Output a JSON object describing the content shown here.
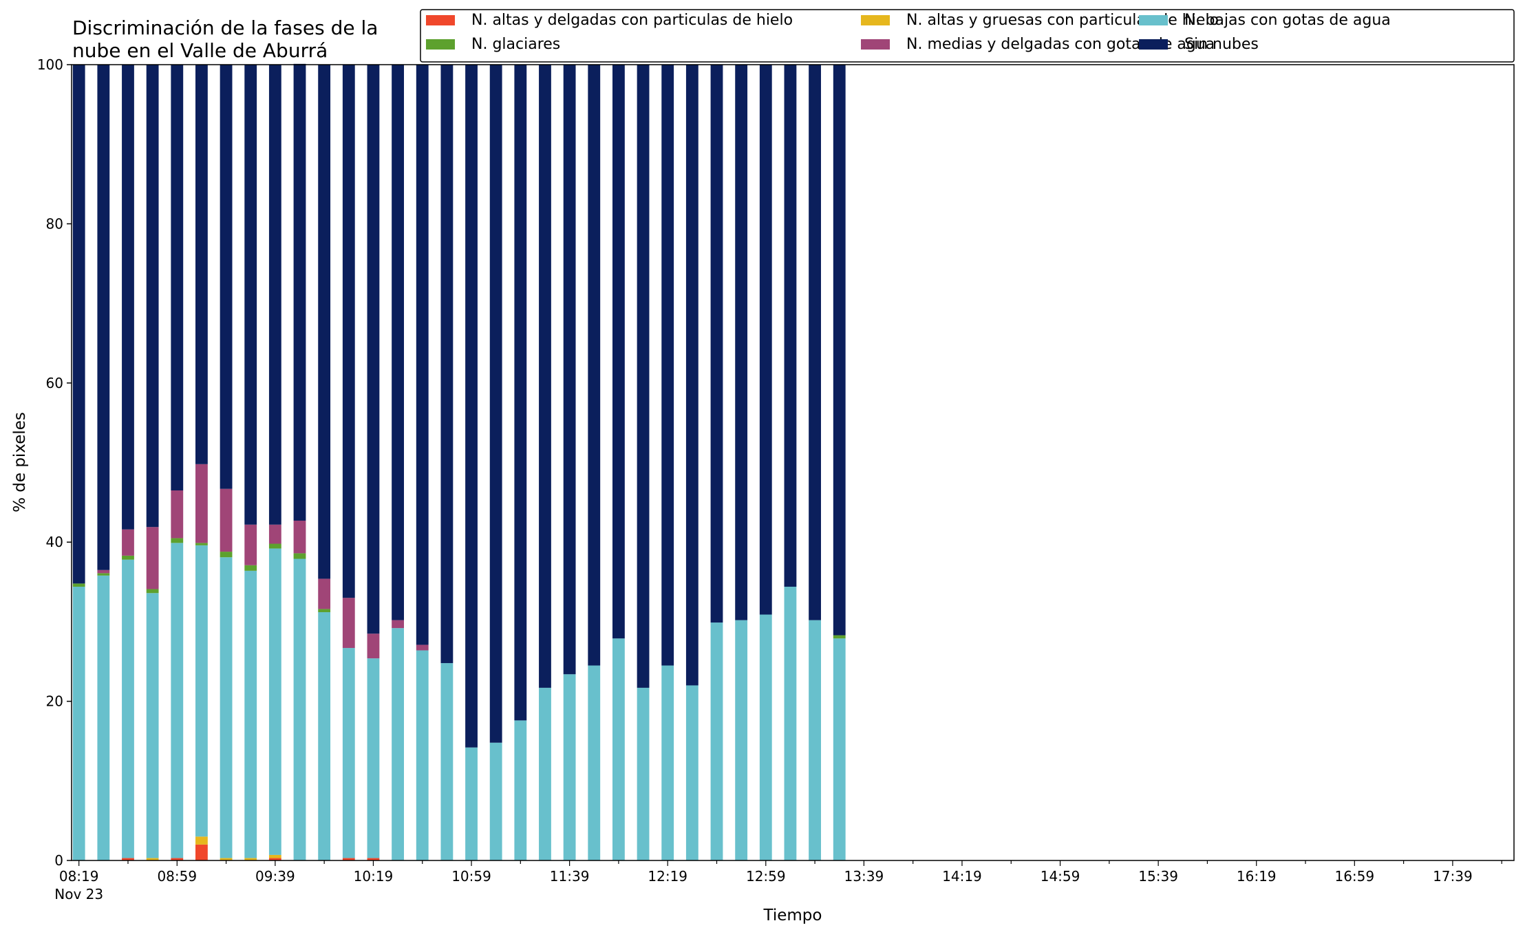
{
  "chart_data": {
    "type": "bar",
    "stacked": true,
    "title_line1": "Discriminación de la fases de la",
    "title_line2": "nube en el Valle de Aburrá",
    "xlabel": "Tiempo",
    "ylabel": "% de pixeles",
    "ylim": [
      0,
      100
    ],
    "yticks": [
      "0",
      "20",
      "40",
      "60",
      "80",
      "100"
    ],
    "xlim_minutes": [
      -3,
      585
    ],
    "bar_interval_minutes": 10,
    "bar_width_minutes": 5,
    "xtick_labels": [
      {
        "minute": 0,
        "label": "08:19",
        "sublabel": "Nov 23"
      },
      {
        "minute": 40,
        "label": "08:59"
      },
      {
        "minute": 80,
        "label": "09:39"
      },
      {
        "minute": 120,
        "label": "10:19"
      },
      {
        "minute": 160,
        "label": "10:59"
      },
      {
        "minute": 200,
        "label": "11:39"
      },
      {
        "minute": 240,
        "label": "12:19"
      },
      {
        "minute": 280,
        "label": "12:59"
      },
      {
        "minute": 320,
        "label": "13:39"
      },
      {
        "minute": 360,
        "label": "14:19"
      },
      {
        "minute": 400,
        "label": "14:59"
      },
      {
        "minute": 440,
        "label": "15:39"
      },
      {
        "minute": 480,
        "label": "16:19"
      },
      {
        "minute": 520,
        "label": "16:59"
      },
      {
        "minute": 560,
        "label": "17:39"
      }
    ],
    "legend_position": "top-right",
    "legend_columns": 3,
    "series": [
      {
        "name": "N. altas y delgadas con particulas de hielo",
        "color": "#f0472b",
        "values": [
          0,
          0,
          0.3,
          0,
          0.3,
          2,
          0,
          0,
          0.3,
          0,
          0,
          0.3,
          0.3,
          0,
          0,
          0,
          0,
          0,
          0,
          0,
          0,
          0,
          0,
          0,
          0,
          0,
          0,
          0,
          0,
          0,
          0,
          0
        ]
      },
      {
        "name": "N. altas y gruesas con particulas de hielo",
        "color": "#e6b71e",
        "values": [
          0,
          0,
          0,
          0.3,
          0,
          1,
          0.3,
          0.3,
          0.4,
          0,
          0,
          0,
          0,
          0,
          0,
          0,
          0,
          0,
          0,
          0,
          0,
          0,
          0,
          0,
          0,
          0,
          0,
          0,
          0,
          0,
          0,
          0
        ]
      },
      {
        "name": "N. bajas con gotas de agua",
        "color": "#68c0cc",
        "values": [
          34.4,
          35.8,
          37.5,
          33.3,
          39.6,
          36.6,
          37.8,
          36.1,
          38.5,
          37.9,
          31.2,
          26.4,
          25.1,
          29.2,
          26.4,
          24.8,
          14.2,
          14.8,
          17.6,
          21.7,
          23.4,
          24.5,
          27.9,
          21.7,
          24.5,
          22.0,
          29.9,
          30.2,
          30.9,
          34.4,
          30.2,
          27.9
        ]
      },
      {
        "name": "N. glaciares",
        "color": "#5da12e",
        "values": [
          0.4,
          0.3,
          0.5,
          0.5,
          0.6,
          0.3,
          0.7,
          0.7,
          0.6,
          0.7,
          0.4,
          0,
          0,
          0,
          0,
          0,
          0,
          0,
          0,
          0,
          0,
          0,
          0,
          0,
          0,
          0,
          0,
          0,
          0,
          0,
          0,
          0.4
        ]
      },
      {
        "name": "N. medias y delgadas con gotas de agua",
        "color": "#a04577",
        "values": [
          0,
          0.4,
          3.3,
          7.8,
          6,
          9.9,
          7.9,
          5.1,
          2.4,
          4.1,
          3.8,
          6.3,
          3.1,
          1,
          0.7,
          0,
          0,
          0,
          0,
          0,
          0,
          0,
          0,
          0,
          0,
          0,
          0,
          0,
          0,
          0,
          0,
          0
        ]
      },
      {
        "name": "Sin nubes",
        "color": "#0b1f5c",
        "values": [
          65.2,
          63.5,
          58.4,
          58.1,
          53.5,
          50.2,
          53.3,
          57.8,
          57.8,
          57.4,
          64.6,
          67.0,
          71.5,
          69.8,
          72.9,
          75.2,
          85.8,
          85.2,
          82.4,
          78.3,
          76.6,
          75.5,
          72.1,
          78.3,
          75.5,
          78.0,
          70.1,
          69.8,
          69.1,
          65.6,
          69.8,
          71.7
        ]
      }
    ]
  }
}
